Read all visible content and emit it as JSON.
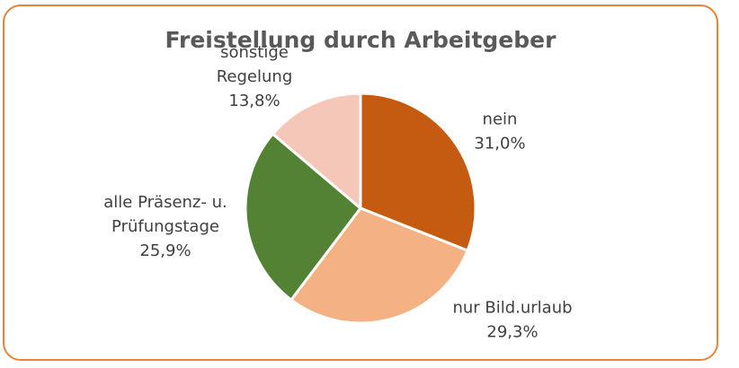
{
  "chart_data": {
    "type": "pie",
    "title": "Freistellung durch Arbeitgeber",
    "slices": [
      {
        "name": "nein",
        "value": 31.0,
        "label_lines": [
          "nein",
          "31,0%"
        ],
        "color": "#C55A11"
      },
      {
        "name": "nur Bild.urlaub",
        "value": 29.3,
        "label_lines": [
          "nur Bild.urlaub",
          "29,3%"
        ],
        "color": "#F4B183"
      },
      {
        "name": "alle Präsenz- u. Prüfungstage",
        "value": 25.9,
        "label_lines": [
          "alle Präsenz- u.",
          "Prüfungstage",
          "25,9%"
        ],
        "color": "#548235"
      },
      {
        "name": "sonstige Regelung",
        "value": 13.8,
        "label_lines": [
          "sonstige",
          "Regelung",
          "13,8%"
        ],
        "color": "#F4C7B9"
      }
    ],
    "border_color": "#E8843A"
  }
}
